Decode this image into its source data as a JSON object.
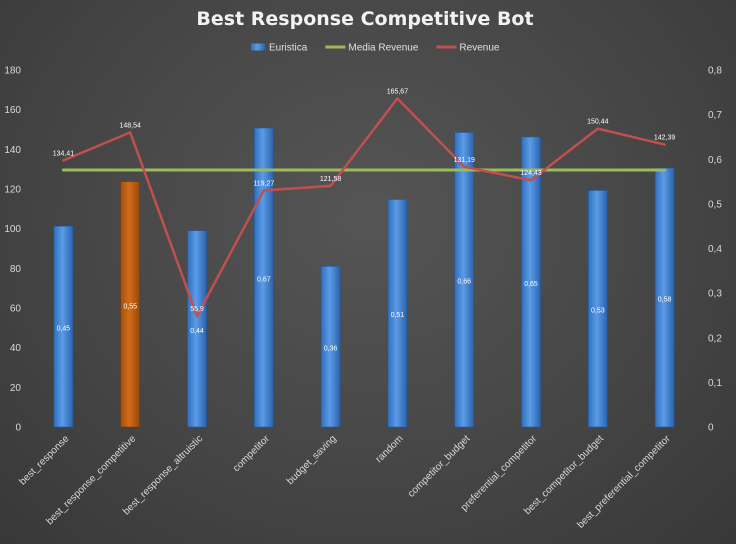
{
  "chart_data": {
    "type": "bar",
    "title": "Best Response Competitive Bot",
    "categories": [
      "best_response",
      "best_response_competitive",
      "best_response_altruistic",
      "competitor",
      "budget_saving",
      "random",
      "competitor_budget",
      "preferential_competitor",
      "best_competitor_budget",
      "best_preferential_competitor"
    ],
    "series": [
      {
        "name": "Euristica",
        "type": "bar",
        "axis": "secondary",
        "values": [
          0.45,
          0.55,
          0.44,
          0.67,
          0.36,
          0.51,
          0.66,
          0.65,
          0.53,
          0.58
        ],
        "labels": [
          "0,45",
          "0,55",
          "0,44",
          "0,67",
          "0,36",
          "0,51",
          "0,66",
          "0,65",
          "0,53",
          "0,58"
        ],
        "highlight_index": 1
      },
      {
        "name": "Media Revenue",
        "type": "line",
        "axis": "primary",
        "values": [
          129.6,
          129.6,
          129.6,
          129.6,
          129.6,
          129.6,
          129.6,
          129.6,
          129.6,
          129.6
        ]
      },
      {
        "name": "Revenue",
        "type": "line",
        "axis": "primary",
        "values": [
          134.41,
          148.54,
          55.9,
          119.27,
          121.58,
          165.67,
          131.19,
          124.43,
          150.44,
          142.39
        ],
        "labels": [
          "134,41",
          "148,54",
          "55,9",
          "119,27",
          "121,58",
          "165,67",
          "131,19",
          "124,43",
          "150,44",
          "142,39"
        ]
      }
    ],
    "y_primary": {
      "range": [
        0,
        180
      ],
      "ticks": [
        "0",
        "20",
        "40",
        "60",
        "80",
        "100",
        "120",
        "140",
        "160",
        "180"
      ]
    },
    "y_secondary": {
      "range": [
        0,
        0.8
      ],
      "ticks": [
        "0",
        "0,1",
        "0,2",
        "0,3",
        "0,4",
        "0,5",
        "0,6",
        "0,7",
        "0,8"
      ]
    },
    "legend_position": "top",
    "grid": false,
    "colors": {
      "bar": "#4a8ad6",
      "bar_highlight": "#c0620f",
      "media_revenue": "#9bbb59",
      "revenue": "#c0504d"
    }
  }
}
